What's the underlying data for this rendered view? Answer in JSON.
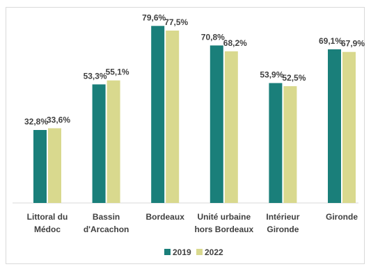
{
  "chart_data": {
    "type": "bar",
    "title": "",
    "xlabel": "",
    "ylabel": "",
    "ylim": [
      0,
      85
    ],
    "grid": false,
    "legend_position": "bottom",
    "categories": [
      [
        "Littoral du",
        "Médoc"
      ],
      [
        "Bassin",
        "d'Arcachon"
      ],
      [
        "Bordeaux"
      ],
      [
        "Unité urbaine",
        "hors Bordeaux"
      ],
      [
        "Intérieur",
        "Gironde"
      ],
      [
        "Gironde"
      ]
    ],
    "series": [
      {
        "name": "2019",
        "color": "#1a7f7a",
        "values": [
          32.8,
          53.3,
          79.6,
          70.8,
          53.9,
          69.1
        ],
        "labels": [
          "32,8%",
          "53,3%",
          "79,6%",
          "70,8%",
          "53,9%",
          "69,1%"
        ]
      },
      {
        "name": "2022",
        "color": "#d9d98e",
        "values": [
          33.6,
          55.1,
          77.5,
          68.2,
          52.5,
          67.9
        ],
        "labels": [
          "33,6%",
          "55,1%",
          "77,5%",
          "68,2%",
          "52,5%",
          "67,9%"
        ]
      }
    ]
  }
}
